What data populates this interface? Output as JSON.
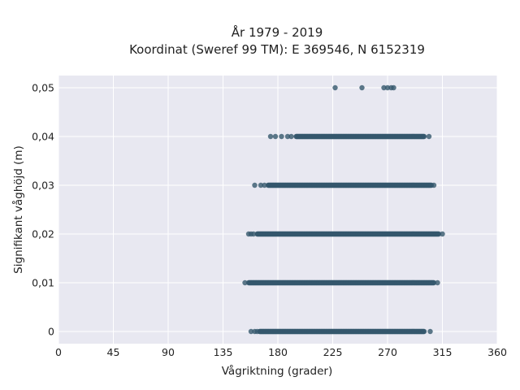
{
  "chart_data": {
    "type": "scatter",
    "title_line1": "År 1979 - 2019",
    "title_line2": "Koordinat (Sweref 99 TM): E 369546, N 6152319",
    "xlabel": "Vågriktning (grader)",
    "ylabel": "Signifikant våghöjd (m)",
    "xlim": [
      0,
      360
    ],
    "ylim": [
      -0.0025,
      0.0525
    ],
    "x_ticks": [
      0,
      45,
      90,
      135,
      180,
      225,
      270,
      315,
      360
    ],
    "x_tick_labels": [
      "0",
      "45",
      "90",
      "135",
      "180",
      "225",
      "270",
      "315",
      "360"
    ],
    "y_ticks": [
      0,
      0.01,
      0.02,
      0.03,
      0.04,
      0.05
    ],
    "y_tick_labels": [
      "0",
      "0,01",
      "0,02",
      "0,03",
      "0,04",
      "0,05"
    ],
    "grid": true,
    "colors": {
      "marker": "#34576d",
      "plot_background": "#e8e8f1",
      "grid": "#ffffff"
    },
    "rows": [
      {
        "y": 0,
        "dense_from": 165,
        "dense_to": 300,
        "sparse_points": [
          158,
          161,
          163,
          305
        ]
      },
      {
        "y": 0.01,
        "dense_from": 156,
        "dense_to": 308,
        "sparse_points": [
          153,
          311
        ]
      },
      {
        "y": 0.02,
        "dense_from": 163,
        "dense_to": 312,
        "sparse_points": [
          156,
          158,
          160,
          315
        ]
      },
      {
        "y": 0.03,
        "dense_from": 172,
        "dense_to": 306,
        "sparse_points": [
          161,
          166,
          169,
          308
        ]
      },
      {
        "y": 0.04,
        "dense_from": 195,
        "dense_to": 300,
        "sparse_points": [
          174,
          178,
          183,
          188,
          191,
          304
        ]
      },
      {
        "y": 0.05,
        "dense_from": 0,
        "dense_to": 0,
        "sparse_points": [
          227,
          249,
          267,
          270,
          273,
          275
        ]
      }
    ]
  }
}
